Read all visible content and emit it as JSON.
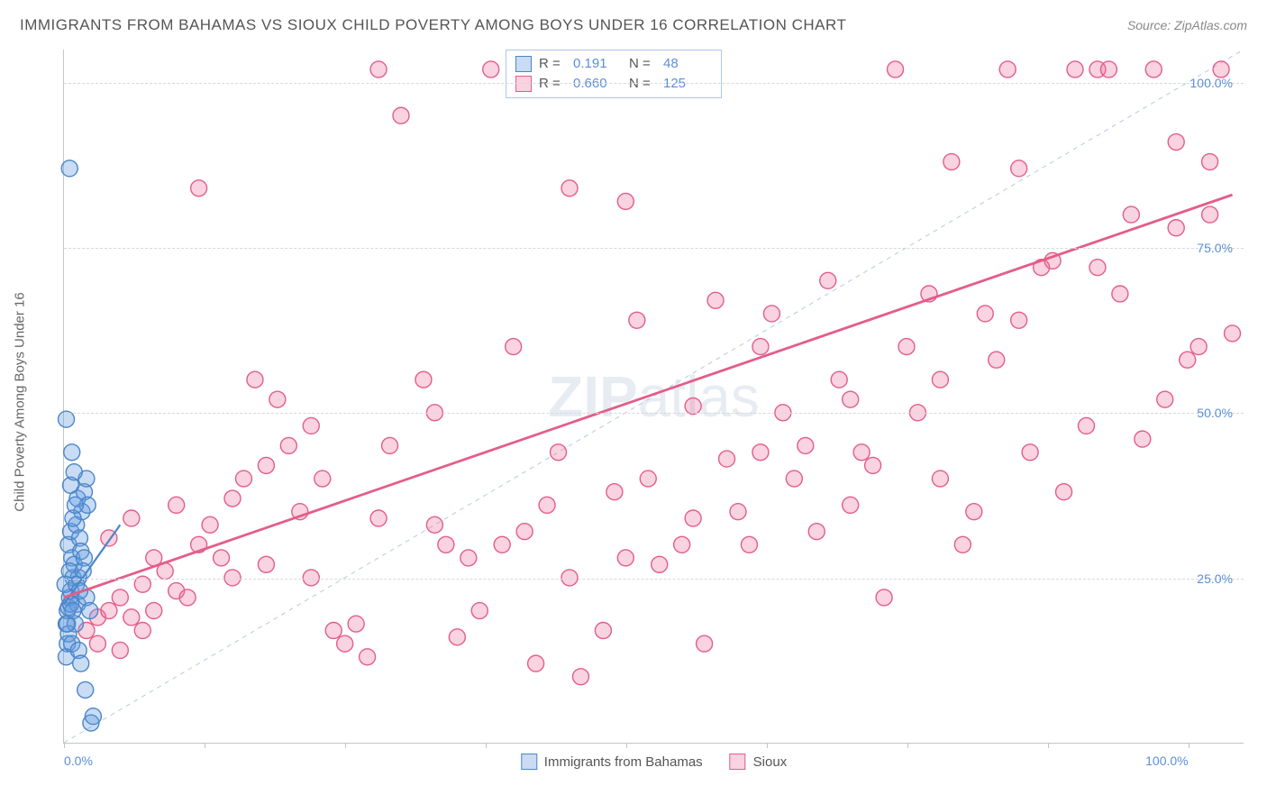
{
  "header": {
    "title": "IMMIGRANTS FROM BAHAMAS VS SIOUX CHILD POVERTY AMONG BOYS UNDER 16 CORRELATION CHART",
    "source_prefix": "Source: ",
    "source_name": "ZipAtlas.com"
  },
  "ylabel": "Child Poverty Among Boys Under 16",
  "watermark": {
    "bold": "ZIP",
    "light": "atlas"
  },
  "chart": {
    "type": "scatter",
    "xlim": [
      0,
      105
    ],
    "ylim": [
      0,
      105
    ],
    "xticks": [
      0,
      100
    ],
    "xtick_labels": [
      "0.0%",
      "100.0%"
    ],
    "xtick_marks": [
      0,
      12.5,
      25,
      37.5,
      50,
      62.5,
      75,
      87.5,
      100
    ],
    "yticks": [
      25,
      50,
      75,
      100
    ],
    "ytick_labels": [
      "25.0%",
      "50.0%",
      "75.0%",
      "100.0%"
    ],
    "grid_color": "#d8d8d8",
    "background_color": "#ffffff",
    "axis_color": "#c4c4c4",
    "tick_label_color": "#5b8fd8",
    "diag_line": {
      "color": "#b8c8e0",
      "dash": "5,5",
      "x1": 0,
      "y1": 0,
      "x2": 105,
      "y2": 105
    },
    "marker_radius": 9,
    "marker_stroke_width": 1.4
  },
  "series": [
    {
      "id": "bahamas",
      "label": "Immigrants from Bahamas",
      "R": "0.191",
      "N": "48",
      "fill": "rgba(99,155,224,0.35)",
      "stroke": "#4a86c9",
      "trend": {
        "x1": 0,
        "y1": 21,
        "x2": 5,
        "y2": 33,
        "width": 2.2
      },
      "points": [
        [
          0.2,
          18
        ],
        [
          0.3,
          20
        ],
        [
          0.5,
          22
        ],
        [
          0.4,
          20.5
        ],
        [
          0.6,
          23
        ],
        [
          0.8,
          25
        ],
        [
          1.0,
          18
        ],
        [
          1.2,
          21
        ],
        [
          0.4,
          30
        ],
        [
          0.6,
          32
        ],
        [
          0.7,
          28
        ],
        [
          0.9,
          27
        ],
        [
          1.1,
          33
        ],
        [
          1.4,
          31
        ],
        [
          1.6,
          35
        ],
        [
          1.2,
          37
        ],
        [
          1.8,
          38
        ],
        [
          2.0,
          40
        ],
        [
          2.1,
          36
        ],
        [
          1.5,
          29
        ],
        [
          1.3,
          25
        ],
        [
          0.8,
          34
        ],
        [
          1.0,
          36
        ],
        [
          0.5,
          26
        ],
        [
          0.3,
          15
        ],
        [
          0.4,
          16.5
        ],
        [
          0.2,
          13
        ],
        [
          0.7,
          15
        ],
        [
          1.3,
          14
        ],
        [
          1.5,
          12
        ],
        [
          1.9,
          8
        ],
        [
          2.4,
          3
        ],
        [
          2.6,
          4
        ],
        [
          2.0,
          22
        ],
        [
          2.3,
          20
        ],
        [
          0.1,
          24
        ],
        [
          0.6,
          39
        ],
        [
          1.8,
          28
        ],
        [
          0.9,
          41
        ],
        [
          0.7,
          44
        ],
        [
          0.2,
          49
        ],
        [
          0.5,
          87
        ],
        [
          0.3,
          18
        ],
        [
          0.6,
          21
        ],
        [
          1.1,
          24
        ],
        [
          0.8,
          20
        ],
        [
          1.4,
          23
        ],
        [
          1.7,
          26
        ]
      ]
    },
    {
      "id": "sioux",
      "label": "Sioux",
      "R": "0.660",
      "N": "125",
      "fill": "rgba(235,110,150,0.30)",
      "stroke": "#e35d89",
      "trend": {
        "x1": 0,
        "y1": 22,
        "x2": 104,
        "y2": 83,
        "width": 2.8
      },
      "points": [
        [
          2,
          17
        ],
        [
          3,
          19
        ],
        [
          4,
          20
        ],
        [
          5,
          22
        ],
        [
          6,
          19
        ],
        [
          7,
          24
        ],
        [
          8,
          20
        ],
        [
          9,
          26
        ],
        [
          10,
          23
        ],
        [
          11,
          22
        ],
        [
          12,
          30
        ],
        [
          13,
          33
        ],
        [
          14,
          28
        ],
        [
          15,
          37
        ],
        [
          16,
          40
        ],
        [
          17,
          55
        ],
        [
          18,
          42
        ],
        [
          19,
          52
        ],
        [
          20,
          45
        ],
        [
          21,
          35
        ],
        [
          12,
          84
        ],
        [
          22,
          48
        ],
        [
          23,
          40
        ],
        [
          24,
          17
        ],
        [
          25,
          15
        ],
        [
          26,
          18
        ],
        [
          27,
          13
        ],
        [
          28,
          102
        ],
        [
          29,
          45
        ],
        [
          30,
          95
        ],
        [
          32,
          55
        ],
        [
          33,
          50
        ],
        [
          34,
          30
        ],
        [
          35,
          16
        ],
        [
          36,
          28
        ],
        [
          37,
          20
        ],
        [
          38,
          102
        ],
        [
          40,
          60
        ],
        [
          41,
          32
        ],
        [
          42,
          12
        ],
        [
          43,
          36
        ],
        [
          44,
          44
        ],
        [
          45,
          84
        ],
        [
          46,
          10
        ],
        [
          47,
          102
        ],
        [
          48,
          17
        ],
        [
          49,
          38
        ],
        [
          50,
          82
        ],
        [
          51,
          64
        ],
        [
          52,
          40
        ],
        [
          53,
          27
        ],
        [
          54,
          102
        ],
        [
          55,
          30
        ],
        [
          56,
          51
        ],
        [
          57,
          15
        ],
        [
          58,
          67
        ],
        [
          59,
          43
        ],
        [
          60,
          35
        ],
        [
          61,
          30
        ],
        [
          62,
          60
        ],
        [
          63,
          65
        ],
        [
          64,
          50
        ],
        [
          65,
          40
        ],
        [
          66,
          45
        ],
        [
          67,
          32
        ],
        [
          68,
          70
        ],
        [
          69,
          55
        ],
        [
          70,
          36
        ],
        [
          71,
          44
        ],
        [
          72,
          42
        ],
        [
          73,
          22
        ],
        [
          74,
          102
        ],
        [
          75,
          60
        ],
        [
          76,
          50
        ],
        [
          77,
          68
        ],
        [
          78,
          40
        ],
        [
          79,
          88
        ],
        [
          80,
          30
        ],
        [
          81,
          35
        ],
        [
          82,
          65
        ],
        [
          83,
          58
        ],
        [
          84,
          102
        ],
        [
          85,
          87
        ],
        [
          86,
          44
        ],
        [
          87,
          72
        ],
        [
          88,
          73
        ],
        [
          89,
          38
        ],
        [
          90,
          102
        ],
        [
          91,
          48
        ],
        [
          92,
          102
        ],
        [
          93,
          102
        ],
        [
          94,
          68
        ],
        [
          95,
          80
        ],
        [
          96,
          46
        ],
        [
          97,
          102
        ],
        [
          98,
          52
        ],
        [
          99,
          91
        ],
        [
          100,
          58
        ],
        [
          101,
          60
        ],
        [
          102,
          80
        ],
        [
          102,
          88
        ],
        [
          103,
          102
        ],
        [
          104,
          62
        ],
        [
          4,
          31
        ],
        [
          6,
          34
        ],
        [
          8,
          28
        ],
        [
          10,
          36
        ],
        [
          3,
          15
        ],
        [
          5,
          14
        ],
        [
          7,
          17
        ],
        [
          15,
          25
        ],
        [
          18,
          27
        ],
        [
          22,
          25
        ],
        [
          28,
          34
        ],
        [
          33,
          33
        ],
        [
          39,
          30
        ],
        [
          45,
          25
        ],
        [
          50,
          28
        ],
        [
          56,
          34
        ],
        [
          62,
          44
        ],
        [
          70,
          52
        ],
        [
          78,
          55
        ],
        [
          85,
          64
        ],
        [
          92,
          72
        ],
        [
          99,
          78
        ]
      ]
    }
  ],
  "legend_top": {
    "r_label": "R =",
    "n_label": "N ="
  },
  "xlegend": {
    "items": [
      {
        "series": 0
      },
      {
        "series": 1
      }
    ]
  }
}
